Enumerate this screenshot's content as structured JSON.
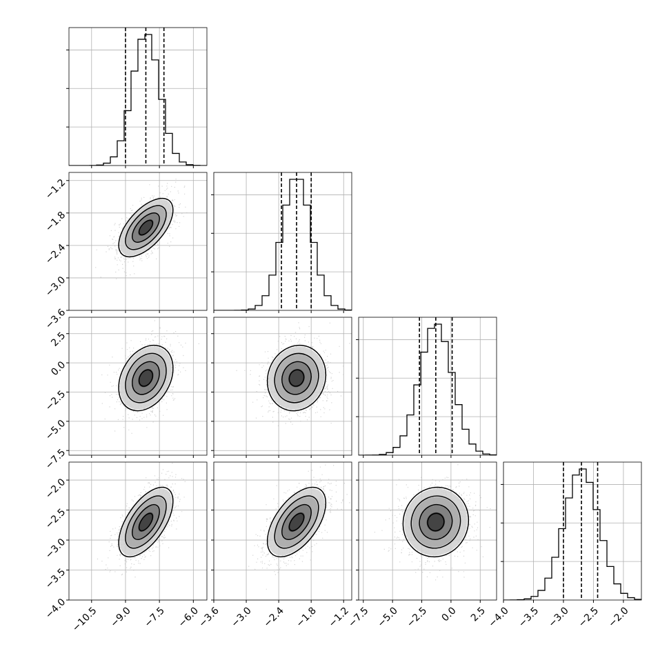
{
  "chart_data": {
    "type": "corner",
    "title": "",
    "grid": true,
    "parameters": [
      {
        "name": "",
        "range": [
          -11.5,
          -5.4
        ],
        "ticks": [
          -10.5,
          -9.0,
          -7.5,
          -6.0
        ],
        "tick_labels": [
          "−10.5",
          "−9.0",
          "−7.5",
          "−6.0"
        ],
        "quantiles": [
          -9.0,
          -8.1,
          -7.3
        ],
        "mean": -8.1,
        "sd": 0.6
      },
      {
        "name": "",
        "range": [
          -3.6,
          -1.05
        ],
        "ticks": [
          -3.6,
          -3.0,
          -2.4,
          -1.8,
          -1.2
        ],
        "tick_labels": [
          "−3.6",
          "−3.0",
          "−2.4",
          "−1.8",
          "−1.2"
        ],
        "quantiles": [
          -2.35,
          -2.07,
          -1.8
        ],
        "mean": -2.07,
        "sd": 0.27
      },
      {
        "name": "",
        "range": [
          -7.9,
          3.9
        ],
        "ticks": [
          -7.5,
          -5.0,
          -2.5,
          0.0,
          2.5
        ],
        "tick_labels": [
          "−7.5",
          "−5.0",
          "−2.5",
          "0.0",
          "2.5"
        ],
        "quantiles": [
          -2.7,
          -1.3,
          0.1
        ],
        "mean": -1.3,
        "sd": 1.4
      },
      {
        "name": "",
        "range": [
          -4.0,
          -1.7
        ],
        "ticks": [
          -4.0,
          -3.5,
          -3.0,
          -2.5,
          -2.0
        ],
        "tick_labels": [
          "−4.0",
          "−3.5",
          "−3.0",
          "−2.5",
          "−2.0"
        ],
        "quantiles": [
          -3.0,
          -2.7,
          -2.43
        ],
        "mean": -2.7,
        "sd": 0.29
      }
    ],
    "correlations": [
      [
        1.0,
        0.6,
        0.3,
        0.6
      ],
      [
        0.6,
        1.0,
        0.1,
        0.55
      ],
      [
        0.3,
        0.1,
        1.0,
        0.05
      ],
      [
        0.6,
        0.55,
        0.05,
        1.0
      ]
    ],
    "histogram_bins": 20,
    "contour_levels": [
      0.5,
      1.0,
      1.5,
      2.0
    ],
    "line_color": "#000000",
    "grid_color": "#b0b0b0",
    "point_color": "#bdbdbd"
  }
}
